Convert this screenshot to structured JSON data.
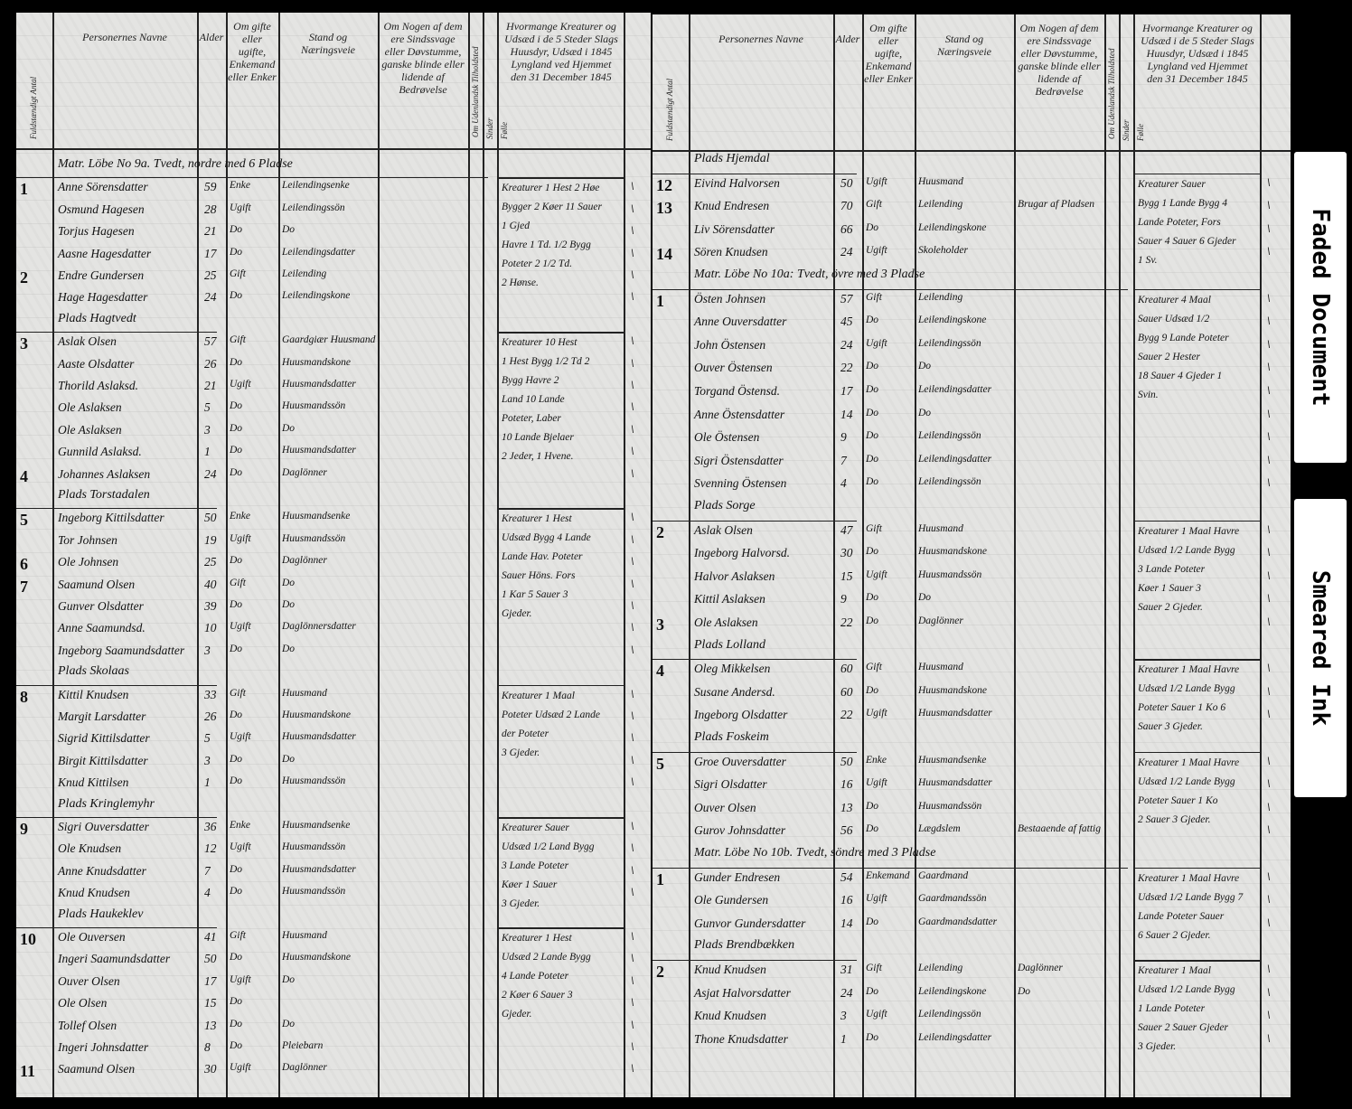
{
  "tabs": [
    "Faded Document",
    "Smeared Ink"
  ],
  "left_page": {
    "headers": {
      "count": "Fuldstændigt Antal",
      "name": "Personernes Navne",
      "age": "Alder",
      "civil": "Om gifte eller ugifte, Enkemand eller Enker",
      "occupation": "Stand og Næringsveie",
      "remarks": "Om Nogen af dem ere Sindssvage eller Døvstumme, ganske blinde eller lidende af Bedrøvelse",
      "stock_small_a": "Om Udenlandsk Tilholdsted",
      "stock_a": "Sinder",
      "stock_b": "Følle",
      "livestock": "Hvormange Kreaturer og Udsæd i de 5 Steder Slags Huusdyr, Udsæd i 1845 Lyngland ved Hjemmet den 31 December 1845"
    },
    "rows": [
      {
        "type": "section",
        "text": "Matr. Löbe No 9a. Tvedt, nordre med 6 Pladse"
      },
      {
        "no": "1",
        "name": "Anne Sörensdatter",
        "age": "59",
        "civil": "Enke",
        "occ": "Leilendingsenke",
        "note": "Kreaturer 1 Hest 2 Høe\nBygger 2 Køer 11 Sauer\n1 Gjed\nHavre 1 Td. 1/2 Bygg\nPoteter 2 1/2 Td.\n2 Hønse."
      },
      {
        "name": "Osmund Hagesen",
        "age": "28",
        "civil": "Ugift",
        "occ": "Leilendingssön"
      },
      {
        "name": "Torjus Hagesen",
        "age": "21",
        "civil": "Do",
        "occ": "Do"
      },
      {
        "name": "Aasne Hagesdatter",
        "age": "17",
        "civil": "Do",
        "occ": "Leilendingsdatter"
      },
      {
        "no": "2",
        "name": "Endre Gundersen",
        "age": "25",
        "civil": "Gift",
        "occ": "Leilending"
      },
      {
        "name": "Hage Hagesdatter",
        "age": "24",
        "civil": "Do",
        "occ": "Leilendingskone"
      },
      {
        "type": "section",
        "text": "Plads Hagtvedt"
      },
      {
        "no": "3",
        "name": "Aslak Olsen",
        "age": "57",
        "civil": "Gift",
        "occ": "Gaardgiær Huusmand",
        "note": "Kreaturer 10 Hest\n1 Hest Bygg 1/2 Td 2\nBygg Havre 2\nLand 10 Lande\nPoteter, Laber\n10 Lande Bjelaer\n2 Jeder, 1 Hvene."
      },
      {
        "name": "Aaste Olsdatter",
        "age": "26",
        "civil": "Do",
        "occ": "Huusmandskone"
      },
      {
        "name": "Thorild Aslaksd.",
        "age": "21",
        "civil": "Ugift",
        "occ": "Huusmandsdatter"
      },
      {
        "name": "Ole Aslaksen",
        "age": "5",
        "civil": "Do",
        "occ": "Huusmandssön"
      },
      {
        "name": "Ole Aslaksen",
        "age": "3",
        "civil": "Do",
        "occ": "Do"
      },
      {
        "name": "Gunnild Aslaksd.",
        "age": "1",
        "civil": "Do",
        "occ": "Huusmandsdatter"
      },
      {
        "no": "4",
        "name": "Johannes Aslaksen",
        "age": "24",
        "civil": "Do",
        "occ": "Daglönner"
      },
      {
        "type": "section",
        "text": "Plads Torstadalen"
      },
      {
        "no": "5",
        "name": "Ingeborg Kittilsdatter",
        "age": "50",
        "civil": "Enke",
        "occ": "Huusmandsenke",
        "note": "Kreaturer 1 Hest\nUdsæd Bygg 4 Lande\nLande Hav. Poteter\nSauer Höns. Fors\n1 Kar 5 Sauer 3\nGjeder."
      },
      {
        "name": "Tor Johnsen",
        "age": "19",
        "civil": "Ugift",
        "occ": "Huusmandssön"
      },
      {
        "no": "6",
        "name": "Ole Johnsen",
        "age": "25",
        "civil": "Do",
        "occ": "Daglönner"
      },
      {
        "no": "7",
        "name": "Saamund Olsen",
        "age": "40",
        "civil": "Gift",
        "occ": "Do"
      },
      {
        "name": "Gunver Olsdatter",
        "age": "39",
        "civil": "Do",
        "occ": "Do"
      },
      {
        "name": "Anne Saamundsd.",
        "age": "10",
        "civil": "Ugift",
        "occ": "Daglönnersdatter"
      },
      {
        "name": "Ingeborg Saamundsdatter",
        "age": "3",
        "civil": "Do",
        "occ": "Do"
      },
      {
        "type": "section",
        "text": "Plads Skolaas"
      },
      {
        "no": "8",
        "name": "Kittil Knudsen",
        "age": "33",
        "civil": "Gift",
        "occ": "Huusmand",
        "note": "Kreaturer 1 Maal\nPoteter Udsæd 2 Lande\nder Poteter\n3 Gjeder."
      },
      {
        "name": "Margit Larsdatter",
        "age": "26",
        "civil": "Do",
        "occ": "Huusmandskone"
      },
      {
        "name": "Sigrid Kittilsdatter",
        "age": "5",
        "civil": "Ugift",
        "occ": "Huusmandsdatter"
      },
      {
        "name": "Birgit Kittilsdatter",
        "age": "3",
        "civil": "Do",
        "occ": "Do"
      },
      {
        "name": "Knud Kittilsen",
        "age": "1",
        "civil": "Do",
        "occ": "Huusmandssön"
      },
      {
        "type": "section",
        "text": "Plads Kringlemyhr"
      },
      {
        "no": "9",
        "name": "Sigri Ouversdatter",
        "age": "36",
        "civil": "Enke",
        "occ": "Huusmandsenke",
        "note": "Kreaturer Sauer\nUdsæd 1/2 Land Bygg\n3 Lande Poteter\nKøer 1 Sauer\n3 Gjeder."
      },
      {
        "name": "Ole Knudsen",
        "age": "12",
        "civil": "Ugift",
        "occ": "Huusmandssön"
      },
      {
        "name": "Anne Knudsdatter",
        "age": "7",
        "civil": "Do",
        "occ": "Huusmandsdatter"
      },
      {
        "name": "Knud Knudsen",
        "age": "4",
        "civil": "Do",
        "occ": "Huusmandssön"
      },
      {
        "type": "section",
        "text": "Plads Haukeklev"
      },
      {
        "no": "10",
        "name": "Ole Ouversen",
        "age": "41",
        "civil": "Gift",
        "occ": "Huusmand",
        "note": "Kreaturer 1 Hest\nUdsæd 2 Lande Bygg\n4 Lande Poteter\n2 Køer 6 Sauer 3\nGjeder."
      },
      {
        "name": "Ingeri Saamundsdatter",
        "age": "50",
        "civil": "Do",
        "occ": "Huusmandskone"
      },
      {
        "name": "Ouver Olsen",
        "age": "17",
        "civil": "Ugift",
        "occ": "Do"
      },
      {
        "name": "Ole Olsen",
        "age": "15",
        "civil": "Do",
        "occ": ""
      },
      {
        "name": "Tollef Olsen",
        "age": "13",
        "civil": "Do",
        "occ": "Do"
      },
      {
        "name": "Ingeri Johnsdatter",
        "age": "8",
        "civil": "Do",
        "occ": "Pleiebarn"
      },
      {
        "no": "11",
        "name": "Saamund Olsen",
        "age": "30",
        "civil": "Ugift",
        "occ": "Daglönner"
      }
    ]
  },
  "right_page": {
    "headers": {
      "count": "Fuldstændigt Antal",
      "name": "Personernes Navne",
      "age": "Alder",
      "civil": "Om gifte eller ugifte, Enkemand eller Enker",
      "occupation": "Stand og Næringsveie",
      "remarks": "Om Nogen af dem ere Sindssvage eller Døvstumme, ganske blinde eller lidende af Bedrøvelse",
      "stock_small_a": "Om Udenlandsk Tilholdsted",
      "stock_a": "Sinder",
      "stock_b": "Følle",
      "livestock": "Hvormange Kreaturer og Udsæd i de 5 Steder Slags Huusdyr, Udsæd i 1845 Lyngland ved Hjemmet den 31 December 1845"
    },
    "rows": [
      {
        "type": "section",
        "text": "Plads Hjemdal"
      },
      {
        "no": "12",
        "name": "Eivind Halvorsen",
        "age": "50",
        "civil": "Ugift",
        "occ": "Huusmand",
        "note": "Kreaturer Sauer\nBygg 1 Lande Bygg 4\nLande Poteter, Fors\nSauer 4 Sauer 6 Gjeder\n1 Sv."
      },
      {
        "no": "13",
        "name": "Knud Endresen",
        "age": "70",
        "civil": "Gift",
        "occ": "Leilending",
        "remark": "Brugar af Pladsen"
      },
      {
        "name": "Liv Sörensdatter",
        "age": "66",
        "civil": "Do",
        "occ": "Leilendingskone"
      },
      {
        "no": "14",
        "name": "Sören Knudsen",
        "age": "24",
        "civil": "Ugift",
        "occ": "Skoleholder"
      },
      {
        "type": "section",
        "text": "Matr. Löbe No 10a: Tvedt, övre med 3 Pladse"
      },
      {
        "no": "1",
        "name": "Östen Johnsen",
        "age": "57",
        "civil": "Gift",
        "occ": "Leilending",
        "note": "Kreaturer 4 Maal\nSauer Udsæd 1/2\nBygg 9 Lande Poteter\nSauer 2 Hester\n18 Sauer 4 Gjeder 1\nSvin."
      },
      {
        "name": "Anne Ouversdatter",
        "age": "45",
        "civil": "Do",
        "occ": "Leilendingskone"
      },
      {
        "name": "John Östensen",
        "age": "24",
        "civil": "Ugift",
        "occ": "Leilendingssön"
      },
      {
        "name": "Ouver Östensen",
        "age": "22",
        "civil": "Do",
        "occ": "Do"
      },
      {
        "name": "Torgand Östensd.",
        "age": "17",
        "civil": "Do",
        "occ": "Leilendingsdatter"
      },
      {
        "name": "Anne Östensdatter",
        "age": "14",
        "civil": "Do",
        "occ": "Do"
      },
      {
        "name": "Ole Östensen",
        "age": "9",
        "civil": "Do",
        "occ": "Leilendingssön"
      },
      {
        "name": "Sigri Östensdatter",
        "age": "7",
        "civil": "Do",
        "occ": "Leilendingsdatter"
      },
      {
        "name": "Svenning Östensen",
        "age": "4",
        "civil": "Do",
        "occ": "Leilendingssön"
      },
      {
        "type": "section",
        "text": "Plads Sorge"
      },
      {
        "no": "2",
        "name": "Aslak Olsen",
        "age": "47",
        "civil": "Gift",
        "occ": "Huusmand",
        "note": "Kreaturer 1 Maal Havre\nUdsæd 1/2 Lande Bygg\n3 Lande Poteter\nKøer 1 Sauer 3\nSauer 2 Gjeder."
      },
      {
        "name": "Ingeborg Halvorsd.",
        "age": "30",
        "civil": "Do",
        "occ": "Huusmandskone"
      },
      {
        "name": "Halvor Aslaksen",
        "age": "15",
        "civil": "Ugift",
        "occ": "Huusmandssön"
      },
      {
        "name": "Kittil Aslaksen",
        "age": "9",
        "civil": "Do",
        "occ": "Do"
      },
      {
        "no": "3",
        "name": "Ole Aslaksen",
        "age": "22",
        "civil": "Do",
        "occ": "Daglönner"
      },
      {
        "type": "section",
        "text": "Plads Lolland"
      },
      {
        "no": "4",
        "name": "Oleg Mikkelsen",
        "age": "60",
        "civil": "Gift",
        "occ": "Huusmand",
        "note": "Kreaturer 1 Maal Havre\nUdsæd 1/2 Lande Bygg\nPoteter Sauer 1 Ko 6\nSauer 3 Gjeder."
      },
      {
        "name": "Susane Andersd.",
        "age": "60",
        "civil": "Do",
        "occ": "Huusmandskone"
      },
      {
        "name": "Ingeborg Olsdatter",
        "age": "22",
        "civil": "Ugift",
        "occ": "Huusmandsdatter"
      },
      {
        "type": "section",
        "text": "Plads Foskeim"
      },
      {
        "no": "5",
        "name": "Groe Ouversdatter",
        "age": "50",
        "civil": "Enke",
        "occ": "Huusmandsenke",
        "note": "Kreaturer 1 Maal Havre\nUdsæd 1/2 Lande Bygg\nPoteter Sauer 1 Ko\n2 Sauer 3 Gjeder."
      },
      {
        "name": "Sigri Olsdatter",
        "age": "16",
        "civil": "Ugift",
        "occ": "Huusmandsdatter"
      },
      {
        "name": "Ouver Olsen",
        "age": "13",
        "civil": "Do",
        "occ": "Huusmandssön"
      },
      {
        "name": "Gurov Johnsdatter",
        "age": "56",
        "civil": "Do",
        "occ": "Lægdslem",
        "remark": "Bestaaende af fattig"
      },
      {
        "type": "section",
        "text": "Matr. Löbe No 10b. Tvedt, söndre med 3 Pladse"
      },
      {
        "no": "1",
        "name": "Gunder Endresen",
        "age": "54",
        "civil": "Enkemand",
        "occ": "Gaardmand",
        "note": "Kreaturer 1 Maal Havre\nUdsæd 1/2 Lande Bygg 7\nLande Poteter Sauer\n6 Sauer 2 Gjeder."
      },
      {
        "name": "Ole Gundersen",
        "age": "16",
        "civil": "Ugift",
        "occ": "Gaardmandssön"
      },
      {
        "name": "Gunvor Gundersdatter",
        "age": "14",
        "civil": "Do",
        "occ": "Gaardmandsdatter"
      },
      {
        "type": "section",
        "text": "Plads Brendbækken"
      },
      {
        "no": "2",
        "name": "Knud Knudsen",
        "age": "31",
        "civil": "Gift",
        "occ": "Leilending",
        "remark": "Daglönner",
        "note": "Kreaturer 1 Maal\nUdsæd 1/2 Lande Bygg\n1 Lande Poteter\nSauer 2 Sauer Gjeder\n3 Gjeder."
      },
      {
        "name": "Asjat Halvorsdatter",
        "age": "24",
        "civil": "Do",
        "occ": "Leilendingskone",
        "remark": "Do"
      },
      {
        "name": "Knud Knudsen",
        "age": "3",
        "civil": "Ugift",
        "occ": "Leilendingssön"
      },
      {
        "name": "Thone Knudsdatter",
        "age": "1",
        "civil": "Do",
        "occ": "Leilendingsdatter"
      }
    ]
  }
}
